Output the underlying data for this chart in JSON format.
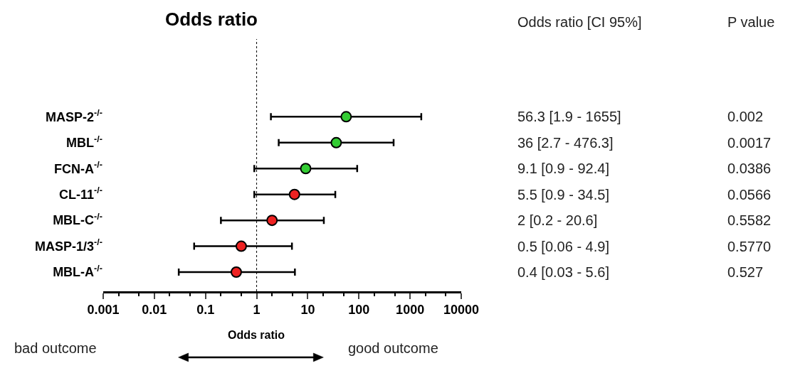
{
  "chart_data": {
    "type": "scatter",
    "orientation": "horizontal",
    "title": "Odds ratio",
    "xlabel": "Odds ratio",
    "categories": [
      "MASP-2$^{-/-}$",
      "MBL$^{-/-}$",
      "FCN-A$^{-/-}$",
      "CL-11$^{-/-}$",
      "MBL-C$^{-/-}$",
      "MASP-1/3$^{-/-}$",
      "MBL-A$^{-/-}$"
    ],
    "values": [
      56.3,
      36,
      9.1,
      5.5,
      2,
      0.5,
      0.4
    ],
    "errors": [
      [
        1.9,
        1655
      ],
      [
        2.7,
        476.3
      ],
      [
        0.9,
        92.4
      ],
      [
        0.9,
        34.5
      ],
      [
        0.2,
        20.6
      ],
      [
        0.06,
        4.9
      ],
      [
        0.03,
        5.6
      ]
    ],
    "colors": [
      "#33cc33",
      "#33cc33",
      "#33cc33",
      "#ee2222",
      "#ee2222",
      "#ee2222",
      "#ee2222"
    ],
    "annotations": [
      "Odds ratio [CI 95%]",
      "P value",
      "bad outcome",
      "good outcome",
      "56.3 [1.9 - 1655]",
      "36 [2.7 - 476.3]",
      "9.1 [0.9 - 92.4]",
      "5.5 [0.9 - 34.5]",
      "2 [0.2 - 20.6]",
      "0.5 [0.06 - 4.9]",
      "0.4 [0.03 - 5.6]",
      "0.002",
      "0.0017",
      "0.0386",
      "0.0566",
      "0.5582",
      "0.5770",
      "0.527"
    ],
    "log": "x",
    "xlim": [
      0.001,
      10000
    ],
    "xticks": [
      0.001,
      0.01,
      0.1,
      1,
      10,
      100,
      1000,
      10000
    ],
    "ref_lines": [
      {
        "axis": "x",
        "value": 1,
        "color": "#000000",
        "line_style": "dotted"
      }
    ],
    "marker": "circle",
    "legend": false
  }
}
